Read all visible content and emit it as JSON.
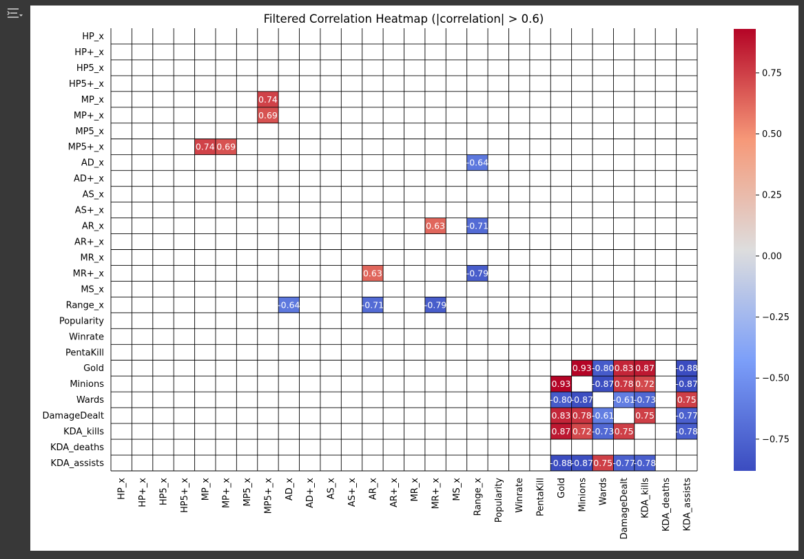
{
  "ui": {
    "menu_icon": "table-of-contents-icon",
    "panel_bg": "#ffffff",
    "app_bg": "#383838"
  },
  "chart_data": {
    "type": "heatmap",
    "title": "Filtered Correlation Heatmap (|correlation| > 0.6)",
    "labels": [
      "HP_x",
      "HP+_x",
      "HP5_x",
      "HP5+_x",
      "MP_x",
      "MP+_x",
      "MP5_x",
      "MP5+_x",
      "AD_x",
      "AD+_x",
      "AS_x",
      "AS+_x",
      "AR_x",
      "AR+_x",
      "MR_x",
      "MR+_x",
      "MS_x",
      "Range_x",
      "Popularity",
      "Winrate",
      "PentaKill",
      "Gold",
      "Minions",
      "Wards",
      "DamageDealt",
      "KDA_kills",
      "KDA_deaths",
      "KDA_assists"
    ],
    "cells": [
      {
        "row": "MP_x",
        "col": "MP5+_x",
        "value": 0.74
      },
      {
        "row": "MP+_x",
        "col": "MP5+_x",
        "value": 0.69
      },
      {
        "row": "MP5+_x",
        "col": "MP_x",
        "value": 0.74
      },
      {
        "row": "MP5+_x",
        "col": "MP+_x",
        "value": 0.69
      },
      {
        "row": "AD_x",
        "col": "Range_x",
        "value": -0.64
      },
      {
        "row": "AR_x",
        "col": "MR+_x",
        "value": 0.63
      },
      {
        "row": "AR_x",
        "col": "Range_x",
        "value": -0.71
      },
      {
        "row": "MR+_x",
        "col": "AR_x",
        "value": 0.63
      },
      {
        "row": "MR+_x",
        "col": "Range_x",
        "value": -0.79
      },
      {
        "row": "Range_x",
        "col": "AD_x",
        "value": -0.64
      },
      {
        "row": "Range_x",
        "col": "AR_x",
        "value": -0.71
      },
      {
        "row": "Range_x",
        "col": "MR+_x",
        "value": -0.79
      },
      {
        "row": "Gold",
        "col": "Minions",
        "value": 0.93
      },
      {
        "row": "Gold",
        "col": "Wards",
        "value": -0.8
      },
      {
        "row": "Gold",
        "col": "DamageDealt",
        "value": 0.83
      },
      {
        "row": "Gold",
        "col": "KDA_kills",
        "value": 0.87
      },
      {
        "row": "Gold",
        "col": "KDA_assists",
        "value": -0.88
      },
      {
        "row": "Minions",
        "col": "Gold",
        "value": 0.93
      },
      {
        "row": "Minions",
        "col": "Wards",
        "value": -0.87
      },
      {
        "row": "Minions",
        "col": "DamageDealt",
        "value": 0.78
      },
      {
        "row": "Minions",
        "col": "KDA_kills",
        "value": 0.72
      },
      {
        "row": "Minions",
        "col": "KDA_assists",
        "value": -0.87
      },
      {
        "row": "Wards",
        "col": "Gold",
        "value": -0.8
      },
      {
        "row": "Wards",
        "col": "Minions",
        "value": -0.87
      },
      {
        "row": "Wards",
        "col": "DamageDealt",
        "value": -0.61
      },
      {
        "row": "Wards",
        "col": "KDA_kills",
        "value": -0.73
      },
      {
        "row": "Wards",
        "col": "KDA_assists",
        "value": 0.75
      },
      {
        "row": "DamageDealt",
        "col": "Gold",
        "value": 0.83
      },
      {
        "row": "DamageDealt",
        "col": "Minions",
        "value": 0.78
      },
      {
        "row": "DamageDealt",
        "col": "Wards",
        "value": -0.61
      },
      {
        "row": "DamageDealt",
        "col": "KDA_kills",
        "value": 0.75
      },
      {
        "row": "DamageDealt",
        "col": "KDA_assists",
        "value": -0.77
      },
      {
        "row": "KDA_kills",
        "col": "Gold",
        "value": 0.87
      },
      {
        "row": "KDA_kills",
        "col": "Minions",
        "value": 0.72
      },
      {
        "row": "KDA_kills",
        "col": "Wards",
        "value": -0.73
      },
      {
        "row": "KDA_kills",
        "col": "DamageDealt",
        "value": 0.75
      },
      {
        "row": "KDA_kills",
        "col": "KDA_assists",
        "value": -0.78
      },
      {
        "row": "KDA_assists",
        "col": "Gold",
        "value": -0.88
      },
      {
        "row": "KDA_assists",
        "col": "Minions",
        "value": -0.87
      },
      {
        "row": "KDA_assists",
        "col": "Wards",
        "value": 0.75
      },
      {
        "row": "KDA_assists",
        "col": "DamageDealt",
        "value": -0.77
      },
      {
        "row": "KDA_assists",
        "col": "KDA_kills",
        "value": -0.78
      }
    ],
    "colormap": "coolwarm",
    "colorbar": {
      "vmin": -0.88,
      "vmax": 0.93,
      "ticks": [
        0.75,
        0.5,
        0.25,
        0.0,
        -0.25,
        -0.5,
        -0.75
      ],
      "tick_labels": [
        "0.75",
        "0.50",
        "0.25",
        "0.00",
        "−0.25",
        "−0.50",
        "−0.75"
      ]
    },
    "grid": true,
    "legend": "colorbar-right"
  }
}
